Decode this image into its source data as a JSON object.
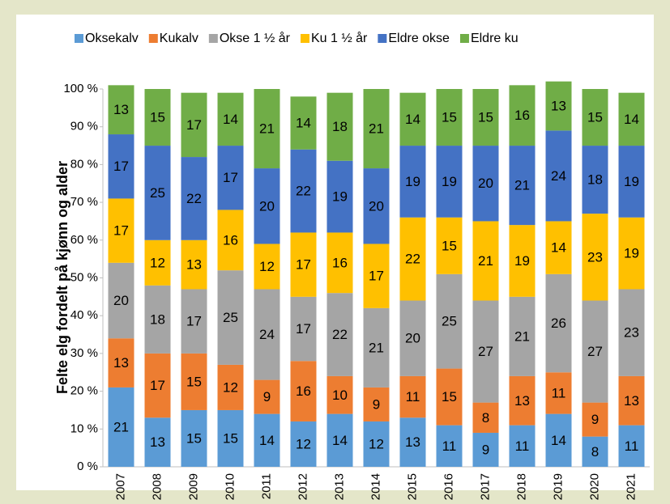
{
  "chart_data": {
    "type": "stacked-bar",
    "y_label": "Felte elg fordelt på kjønn og alder",
    "categories": [
      "2007",
      "2008",
      "2009",
      "2010",
      "2011",
      "2012",
      "2013",
      "2014",
      "2015",
      "2016",
      "2017",
      "2018",
      "2019",
      "2020",
      "2021"
    ],
    "series": [
      {
        "name": "Oksekalv",
        "color": "#5b9bd5",
        "values": [
          21,
          13,
          15,
          15,
          14,
          12,
          14,
          12,
          13,
          11,
          9,
          11,
          14,
          8,
          11
        ]
      },
      {
        "name": "Kukalv",
        "color": "#ed7d31",
        "values": [
          13,
          17,
          15,
          12,
          9,
          16,
          10,
          9,
          11,
          15,
          8,
          13,
          11,
          9,
          13
        ]
      },
      {
        "name": "Okse 1 ½ år",
        "color": "#a5a5a5",
        "values": [
          20,
          18,
          17,
          25,
          24,
          17,
          22,
          21,
          20,
          25,
          27,
          21,
          26,
          27,
          23
        ]
      },
      {
        "name": "Ku 1 ½ år",
        "color": "#ffc000",
        "values": [
          17,
          12,
          13,
          16,
          12,
          17,
          16,
          17,
          22,
          15,
          21,
          19,
          14,
          23,
          19
        ]
      },
      {
        "name": "Eldre okse",
        "color": "#4472c4",
        "values": [
          17,
          25,
          22,
          17,
          20,
          22,
          19,
          20,
          19,
          19,
          20,
          21,
          24,
          18,
          19
        ]
      },
      {
        "name": "Eldre ku",
        "color": "#70ad47",
        "values": [
          13,
          15,
          17,
          14,
          21,
          14,
          18,
          21,
          14,
          15,
          15,
          16,
          13,
          15,
          14
        ]
      }
    ],
    "ylim": [
      0,
      100
    ],
    "yticks": [
      {
        "value": 0,
        "label": "0 %"
      },
      {
        "value": 10,
        "label": "10 %"
      },
      {
        "value": 20,
        "label": "20 %"
      },
      {
        "value": 30,
        "label": "30 %"
      },
      {
        "value": 40,
        "label": "40 %"
      },
      {
        "value": 50,
        "label": "50 %"
      },
      {
        "value": 60,
        "label": "60 %"
      },
      {
        "value": 70,
        "label": "70 %"
      },
      {
        "value": 80,
        "label": "80 %"
      },
      {
        "value": 90,
        "label": "90 %"
      },
      {
        "value": 100,
        "label": "100 %"
      }
    ],
    "legend": "top"
  }
}
